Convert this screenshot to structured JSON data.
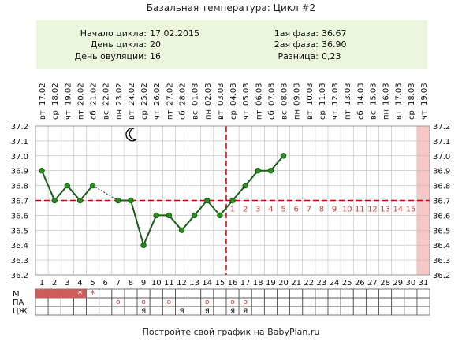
{
  "title": "Базальная температура: Цикл #2",
  "summary": {
    "cycle_start_label": "Начало цикла:",
    "cycle_start_value": "17.02.2015",
    "cycle_day_label": "День цикла:",
    "cycle_day_value": "20",
    "ovulation_day_label": "День овуляции:",
    "ovulation_day_value": "16",
    "phase1_label": "1ая фаза:",
    "phase1_value": "36.67",
    "phase2_label": "2ая фаза:",
    "phase2_value": "36.90",
    "difference_label": "Разница:",
    "difference_value": "0,23"
  },
  "footer_text": "Постройте свой график на BabyPlan.ru",
  "colors": {
    "header_bg": "#eaf7dc",
    "line": "#1a5e1a",
    "marker": "#2e8b1e",
    "coverline": "#cc0000",
    "ovulation_line": "#cc0000",
    "highlight": "#f8c8c8",
    "grid": "#bbbbbb",
    "phase_number": "#d04040",
    "period_fill": "#cd5c5c"
  },
  "moon_icon": "crescent-moon-icon",
  "row_labels": [
    "М",
    "ПА",
    "ЦЖ"
  ],
  "chart_data": {
    "type": "line",
    "x_label": "cycle day",
    "days": [
      1,
      2,
      3,
      4,
      5,
      6,
      7,
      8,
      9,
      10,
      11,
      12,
      13,
      14,
      15,
      16,
      17,
      18,
      19,
      20,
      21,
      22,
      23,
      24,
      25,
      26,
      27,
      28,
      29,
      30,
      31
    ],
    "dates": [
      "17.02",
      "18.02",
      "19.02",
      "20.02",
      "21.02",
      "22.02",
      "23.02",
      "24.02",
      "25.02",
      "26.02",
      "27.02",
      "28.02",
      "01.03",
      "02.03",
      "03.03",
      "04.03",
      "05.03",
      "06.03",
      "07.03",
      "08.03",
      "09.03",
      "10.03",
      "11.03",
      "12.03",
      "13.03",
      "14.03",
      "15.03",
      "16.03",
      "17.03",
      "18.03",
      "19.03"
    ],
    "weekdays": [
      "вт",
      "ср",
      "чт",
      "пт",
      "сб",
      "вс",
      "пн",
      "вт",
      "ср",
      "чт",
      "пт",
      "сб",
      "вс",
      "пн",
      "вт",
      "ср",
      "чт",
      "пт",
      "сб",
      "вс",
      "пн",
      "вт",
      "ср",
      "чт",
      "пт",
      "сб",
      "вс",
      "пн",
      "вт",
      "ср",
      "чт"
    ],
    "temperatures": [
      36.9,
      36.7,
      36.8,
      36.7,
      36.8,
      null,
      36.7,
      36.7,
      36.4,
      36.6,
      36.6,
      36.5,
      36.6,
      36.7,
      36.6,
      36.7,
      36.8,
      36.9,
      36.9,
      37.0
    ],
    "dashed_gap": [
      5,
      7
    ],
    "ylim": [
      36.2,
      37.2
    ],
    "y_ticks": [
      "36.2",
      "36.3",
      "36.4",
      "36.5",
      "36.6",
      "36.7",
      "36.8",
      "36.9",
      "37.0",
      "37.1",
      "37.2"
    ],
    "coverline": 36.7,
    "ovulation_day": 16,
    "moon_day": 8,
    "highlight_day": 31,
    "phase2_start_day": 16,
    "phase2_numbers": [
      "1",
      "2",
      "3",
      "4",
      "5",
      "6",
      "7",
      "8",
      "9",
      "10",
      "11",
      "12",
      "13",
      "14",
      "15"
    ],
    "m_days": [
      1,
      2,
      3,
      4
    ],
    "m_star_days": [
      4,
      5
    ],
    "pa_circle_days": [
      7,
      9,
      11,
      14,
      16,
      17
    ],
    "pa_ya_days": [
      9,
      12,
      14,
      16,
      17
    ],
    "pa_circle_symbol": "о",
    "pa_ya_symbol": "Я",
    "m_star_symbol": "*"
  }
}
